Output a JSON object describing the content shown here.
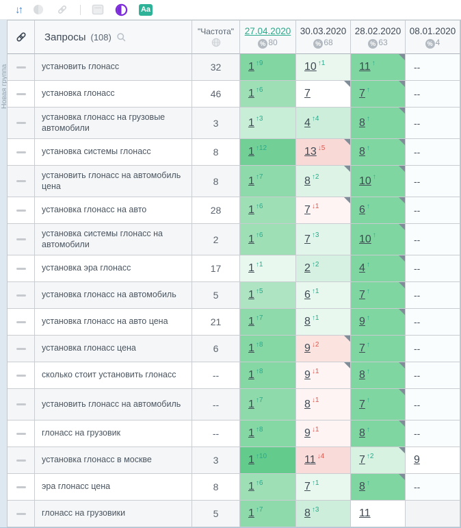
{
  "toolbar": {
    "sort_icon": "sort-arrows",
    "aa_label": "Aa",
    "accent_blue": "#3b7fd4",
    "accent_purple": "#7c2bd9",
    "accent_green": "#2eb398"
  },
  "group_label": "Новая группа",
  "table": {
    "header": {
      "queries_label": "Запросы",
      "queries_count": "(108)",
      "frequency_label": "\"Частота\"",
      "dates": [
        {
          "label": "27.04.2020",
          "percent": "80",
          "active": true
        },
        {
          "label": "30.03.2020",
          "percent": "68",
          "active": false
        },
        {
          "label": "28.02.2020",
          "percent": "63",
          "active": false
        },
        {
          "label": "08.01.2020",
          "percent": "4",
          "active": false
        }
      ]
    },
    "colors": {
      "change_up": "#2aa88b",
      "change_down": "#e0584e",
      "corner_marker": "#7e8d97"
    },
    "rows": [
      {
        "query": "установить глонасс",
        "freq": "32",
        "tall": false,
        "cells": [
          {
            "v": "1",
            "chg": "9",
            "dir": "up",
            "bg": "#82d6a2",
            "tri": false
          },
          {
            "v": "10",
            "chg": "1",
            "dir": "up",
            "bg": "#eaf7ef",
            "tri": false
          },
          {
            "v": "11",
            "chg": "",
            "dir": "up",
            "bg": "#7fd6a0",
            "tri": true
          },
          {
            "v": "--",
            "chg": "",
            "dir": "none",
            "bg": "#fafdfd",
            "tri": false
          }
        ]
      },
      {
        "query": "установка глонасс",
        "freq": "46",
        "tall": false,
        "cells": [
          {
            "v": "1",
            "chg": "6",
            "dir": "up",
            "bg": "#9edfb6",
            "tri": false
          },
          {
            "v": "7",
            "chg": "",
            "dir": "none",
            "bg": "#ffffff",
            "tri": true
          },
          {
            "v": "7",
            "chg": "",
            "dir": "up",
            "bg": "#7fd6a0",
            "tri": true
          },
          {
            "v": "--",
            "chg": "",
            "dir": "none",
            "bg": "#fafdfd",
            "tri": false
          }
        ]
      },
      {
        "query": "установка глонасс на грузовые автомобили",
        "freq": "3",
        "tall": true,
        "cells": [
          {
            "v": "1",
            "chg": "3",
            "dir": "up",
            "bg": "#c9eed8",
            "tri": false
          },
          {
            "v": "4",
            "chg": "4",
            "dir": "up",
            "bg": "#cceeda",
            "tri": false
          },
          {
            "v": "8",
            "chg": "",
            "dir": "up",
            "bg": "#7fd6a0",
            "tri": true
          },
          {
            "v": "--",
            "chg": "",
            "dir": "none",
            "bg": "#fafdfd",
            "tri": false
          }
        ]
      },
      {
        "query": "установка системы глонасс",
        "freq": "8",
        "tall": false,
        "cells": [
          {
            "v": "1",
            "chg": "12",
            "dir": "up",
            "bg": "#72d096",
            "tri": false
          },
          {
            "v": "13",
            "chg": "5",
            "dir": "down",
            "bg": "#f9d9d6",
            "tri": true
          },
          {
            "v": "8",
            "chg": "",
            "dir": "up",
            "bg": "#7fd6a0",
            "tri": true
          },
          {
            "v": "--",
            "chg": "",
            "dir": "none",
            "bg": "#fafdfd",
            "tri": false
          }
        ]
      },
      {
        "query": "установить глонасс на автомобиль цена",
        "freq": "8",
        "tall": true,
        "cells": [
          {
            "v": "1",
            "chg": "7",
            "dir": "up",
            "bg": "#8fdaab",
            "tri": false
          },
          {
            "v": "8",
            "chg": "2",
            "dir": "up",
            "bg": "#ddf3e6",
            "tri": true
          },
          {
            "v": "10",
            "chg": "",
            "dir": "up",
            "bg": "#7fd6a0",
            "tri": true
          },
          {
            "v": "--",
            "chg": "",
            "dir": "none",
            "bg": "#fafdfd",
            "tri": false
          }
        ]
      },
      {
        "query": "установка глонасс на авто",
        "freq": "28",
        "tall": false,
        "cells": [
          {
            "v": "1",
            "chg": "6",
            "dir": "up",
            "bg": "#9edfb6",
            "tri": false
          },
          {
            "v": "7",
            "chg": "1",
            "dir": "down",
            "bg": "#fdf4f3",
            "tri": true
          },
          {
            "v": "6",
            "chg": "",
            "dir": "up",
            "bg": "#7fd6a0",
            "tri": true
          },
          {
            "v": "--",
            "chg": "",
            "dir": "none",
            "bg": "#fafdfd",
            "tri": false
          }
        ]
      },
      {
        "query": "установка системы глонасс на автомобили",
        "freq": "2",
        "tall": true,
        "cells": [
          {
            "v": "1",
            "chg": "6",
            "dir": "up",
            "bg": "#9edfb6",
            "tri": false
          },
          {
            "v": "7",
            "chg": "3",
            "dir": "up",
            "bg": "#e2f5ea",
            "tri": false
          },
          {
            "v": "10",
            "chg": "",
            "dir": "up",
            "bg": "#7fd6a0",
            "tri": true
          },
          {
            "v": "--",
            "chg": "",
            "dir": "none",
            "bg": "#fafdfd",
            "tri": false
          }
        ]
      },
      {
        "query": "установка эра глонасс",
        "freq": "17",
        "tall": false,
        "cells": [
          {
            "v": "1",
            "chg": "1",
            "dir": "up",
            "bg": "#e8f8ee",
            "tri": false
          },
          {
            "v": "2",
            "chg": "2",
            "dir": "up",
            "bg": "#d6f1e1",
            "tri": false
          },
          {
            "v": "4",
            "chg": "",
            "dir": "up",
            "bg": "#7fd6a0",
            "tri": true
          },
          {
            "v": "--",
            "chg": "",
            "dir": "none",
            "bg": "#fafdfd",
            "tri": false
          }
        ]
      },
      {
        "query": "установка глонасс на автомобиль",
        "freq": "5",
        "tall": false,
        "cells": [
          {
            "v": "1",
            "chg": "5",
            "dir": "up",
            "bg": "#aee4c2",
            "tri": false
          },
          {
            "v": "6",
            "chg": "1",
            "dir": "up",
            "bg": "#e9f8ef",
            "tri": false
          },
          {
            "v": "7",
            "chg": "",
            "dir": "up",
            "bg": "#7fd6a0",
            "tri": true
          },
          {
            "v": "--",
            "chg": "",
            "dir": "none",
            "bg": "#fafdfd",
            "tri": false
          }
        ]
      },
      {
        "query": "установка глонасс на авто цена",
        "freq": "21",
        "tall": false,
        "cells": [
          {
            "v": "1",
            "chg": "7",
            "dir": "up",
            "bg": "#8fdaab",
            "tri": false
          },
          {
            "v": "8",
            "chg": "1",
            "dir": "up",
            "bg": "#e9f8ef",
            "tri": false
          },
          {
            "v": "9",
            "chg": "",
            "dir": "up",
            "bg": "#7fd6a0",
            "tri": true
          },
          {
            "v": "--",
            "chg": "",
            "dir": "none",
            "bg": "#fafdfd",
            "tri": false
          }
        ]
      },
      {
        "query": "установка глонасс цена",
        "freq": "6",
        "tall": false,
        "cells": [
          {
            "v": "1",
            "chg": "8",
            "dir": "up",
            "bg": "#85d7a4",
            "tri": false
          },
          {
            "v": "9",
            "chg": "2",
            "dir": "down",
            "bg": "#fbe3e0",
            "tri": true
          },
          {
            "v": "7",
            "chg": "",
            "dir": "up",
            "bg": "#7fd6a0",
            "tri": false
          },
          {
            "v": "--",
            "chg": "",
            "dir": "none",
            "bg": "#fafdfd",
            "tri": false
          }
        ]
      },
      {
        "query": "сколько стоит установить глонасс",
        "freq": "--",
        "tall": false,
        "cells": [
          {
            "v": "1",
            "chg": "8",
            "dir": "up",
            "bg": "#85d7a4",
            "tri": false
          },
          {
            "v": "9",
            "chg": "1",
            "dir": "down",
            "bg": "#fdf4f3",
            "tri": true
          },
          {
            "v": "8",
            "chg": "",
            "dir": "up",
            "bg": "#7fd6a0",
            "tri": true
          },
          {
            "v": "--",
            "chg": "",
            "dir": "none",
            "bg": "#fafdfd",
            "tri": false
          }
        ]
      },
      {
        "query": "установить глонасс на автомобиль",
        "freq": "--",
        "tall": true,
        "cells": [
          {
            "v": "1",
            "chg": "7",
            "dir": "up",
            "bg": "#8fdaab",
            "tri": false
          },
          {
            "v": "8",
            "chg": "1",
            "dir": "down",
            "bg": "#fdf4f3",
            "tri": false
          },
          {
            "v": "7",
            "chg": "",
            "dir": "up",
            "bg": "#7fd6a0",
            "tri": true
          },
          {
            "v": "--",
            "chg": "",
            "dir": "none",
            "bg": "#fafdfd",
            "tri": false
          }
        ]
      },
      {
        "query": "глонасс на грузовик",
        "freq": "--",
        "tall": false,
        "cells": [
          {
            "v": "1",
            "chg": "8",
            "dir": "up",
            "bg": "#85d7a4",
            "tri": false
          },
          {
            "v": "9",
            "chg": "1",
            "dir": "down",
            "bg": "#fdf4f3",
            "tri": false
          },
          {
            "v": "8",
            "chg": "",
            "dir": "up",
            "bg": "#7fd6a0",
            "tri": true
          },
          {
            "v": "--",
            "chg": "",
            "dir": "none",
            "bg": "#fafdfd",
            "tri": false
          }
        ]
      },
      {
        "query": "установка глонасс в москве",
        "freq": "3",
        "tall": false,
        "cells": [
          {
            "v": "1",
            "chg": "10",
            "dir": "up",
            "bg": "#63cb8b",
            "tri": false
          },
          {
            "v": "11",
            "chg": "4",
            "dir": "down",
            "bg": "#f9dcd9",
            "tri": false
          },
          {
            "v": "7",
            "chg": "2",
            "dir": "up",
            "bg": "#d8f2e2",
            "tri": true
          },
          {
            "v": "9",
            "chg": "",
            "dir": "none",
            "bg": "#ffffff",
            "tri": false
          }
        ]
      },
      {
        "query": "эра глонасс цена",
        "freq": "8",
        "tall": false,
        "cells": [
          {
            "v": "1",
            "chg": "6",
            "dir": "up",
            "bg": "#9edfb6",
            "tri": false
          },
          {
            "v": "7",
            "chg": "1",
            "dir": "up",
            "bg": "#e9f8ef",
            "tri": false
          },
          {
            "v": "8",
            "chg": "",
            "dir": "up",
            "bg": "#7fd6a0",
            "tri": true
          },
          {
            "v": "--",
            "chg": "",
            "dir": "none",
            "bg": "#fafdfd",
            "tri": false
          }
        ]
      },
      {
        "query": "глонасс на грузовики",
        "freq": "5",
        "tall": false,
        "cells": [
          {
            "v": "1",
            "chg": "7",
            "dir": "up",
            "bg": "#8fdaab",
            "tri": false
          },
          {
            "v": "8",
            "chg": "3",
            "dir": "up",
            "bg": "#cdeeda",
            "tri": false
          },
          {
            "v": "11",
            "chg": "",
            "dir": "none",
            "bg": "#ffffff",
            "tri": false
          },
          {
            "v": "",
            "chg": "",
            "dir": "none",
            "bg": "#f2f4f5",
            "tri": false
          }
        ]
      }
    ]
  }
}
